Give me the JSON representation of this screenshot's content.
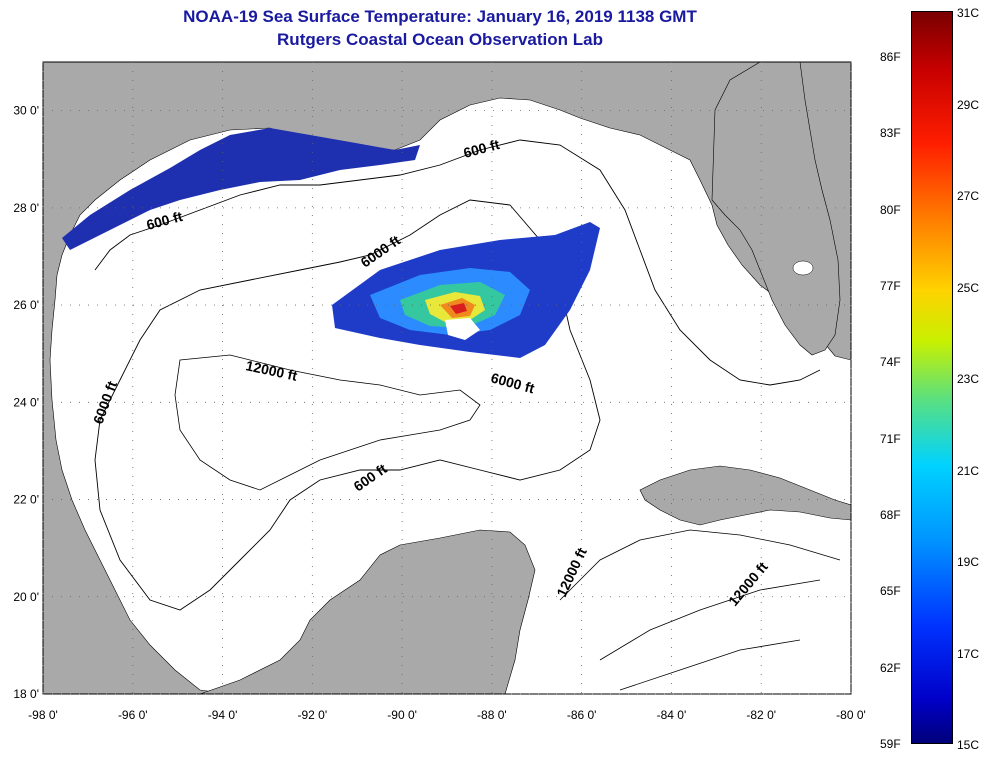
{
  "title": "NOAA-19 Sea Surface Temperature:  January 16, 2019 1138 GMT",
  "subtitle": "Rutgers Coastal Ocean Observation Lab",
  "lat_ticks": [
    "30 0'",
    "28 0'",
    "26 0'",
    "24 0'",
    "22 0'",
    "20 0'",
    "18 0'"
  ],
  "lon_ticks": [
    "-98 0'",
    "-96 0'",
    "-94 0'",
    "-92 0'",
    "-90 0'",
    "-88 0'",
    "-86 0'",
    "-84 0'",
    "-82 0'",
    "-80 0'"
  ],
  "contour_labels": [
    "600 ft",
    "600 ft",
    "6000 ft",
    "6000 ft",
    "12000 ft",
    "6000 ft",
    "600 ft",
    "12000 ft",
    "12000 ft"
  ],
  "colorbar": {
    "fahrenheit": [
      "86F",
      "83F",
      "80F",
      "77F",
      "74F",
      "71F",
      "68F",
      "65F",
      "62F",
      "59F"
    ],
    "celsius": [
      "31C",
      "29C",
      "27C",
      "25C",
      "23C",
      "21C",
      "19C",
      "17C",
      "15C"
    ]
  },
  "colors": {
    "title": "#1a1aa0",
    "land": "#a9a9a9",
    "ocean": "#ffffff"
  }
}
